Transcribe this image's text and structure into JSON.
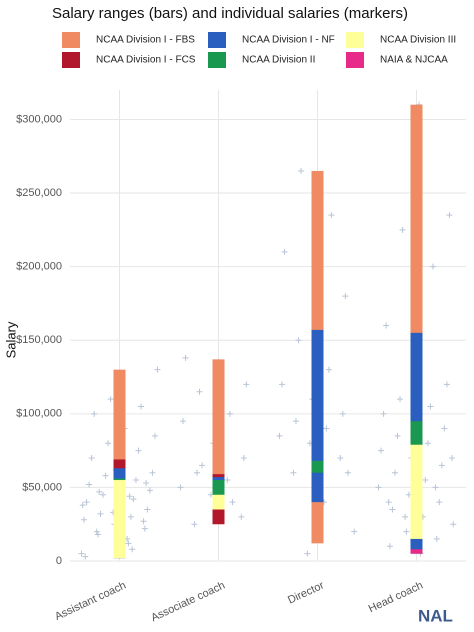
{
  "chart_data": {
    "type": "range-bar",
    "title": "Salary ranges (bars) and individual salaries (markers)",
    "y_label": "Salary",
    "categories": [
      "Assistant coach",
      "Associate coach",
      "Director",
      "Head coach"
    ],
    "ylim": [
      0,
      320000
    ],
    "yticks": [
      0,
      {
        "value": 50000,
        "label": "$50,000"
      },
      {
        "value": 100000,
        "label": "$100,000"
      },
      {
        "value": 150000,
        "label": "$150,000"
      },
      {
        "value": 200000,
        "label": "$200,000"
      },
      {
        "value": 250000,
        "label": "$250,000"
      },
      {
        "value": 300000,
        "label": "$300,000"
      }
    ],
    "grid": true,
    "series": [
      {
        "name": "NCAA Division I - FBS",
        "color": "#ef8a62",
        "low": [
          2000,
          25000,
          12000,
          5000
        ],
        "high": [
          130000,
          137000,
          265000,
          310000
        ]
      },
      {
        "name": "NCAA Division I - FCS",
        "color": "#b2182b",
        "low": [
          2000,
          25000,
          null,
          8000
        ],
        "high": [
          69000,
          59000,
          null,
          100000
        ]
      },
      {
        "name": "NCAA Division I - NF",
        "color": "#2b5fbf",
        "low": [
          2000,
          35000,
          40000,
          5000
        ],
        "high": [
          63000,
          57000,
          157000,
          155000
        ]
      },
      {
        "name": "NCAA Division II",
        "color": "#1a9850",
        "low": [
          2000,
          35000,
          60000,
          30000
        ],
        "high": [
          56000,
          55000,
          68000,
          95000
        ]
      },
      {
        "name": "NCAA Division III",
        "color": "#ffff99",
        "low": [
          2000,
          35000,
          null,
          15000
        ],
        "high": [
          55000,
          45000,
          null,
          79000
        ]
      },
      {
        "name": "NAIA & NJCAA",
        "color": "#e7298a",
        "low": [
          null,
          null,
          null,
          5000
        ],
        "high": [
          null,
          null,
          null,
          8000
        ]
      }
    ],
    "points": {
      "color": "#b8c4d6",
      "values": [
        [
          5000,
          12000,
          18000,
          22000,
          25000,
          28000,
          30000,
          32000,
          35000,
          37000,
          40000,
          42000,
          45000,
          48000,
          50000,
          52000,
          55000,
          58000,
          60000,
          65000,
          70000,
          75000,
          80000,
          85000,
          90000,
          100000,
          105000,
          110000,
          130000,
          15000,
          20000,
          27000,
          33000,
          38000,
          44000,
          47000,
          53000,
          62000,
          3000,
          8000
        ],
        [
          25000,
          30000,
          45000,
          50000,
          55000,
          60000,
          70000,
          80000,
          95000,
          100000,
          115000,
          120000,
          130000,
          138000,
          40000,
          65000
        ],
        [
          5000,
          20000,
          40000,
          60000,
          70000,
          80000,
          85000,
          90000,
          95000,
          100000,
          110000,
          120000,
          130000,
          150000,
          180000,
          200000,
          210000,
          235000,
          265000,
          60000,
          100000
        ],
        [
          5000,
          10000,
          15000,
          20000,
          25000,
          30000,
          35000,
          40000,
          45000,
          50000,
          55000,
          60000,
          65000,
          70000,
          75000,
          80000,
          85000,
          90000,
          95000,
          100000,
          105000,
          110000,
          120000,
          140000,
          160000,
          200000,
          225000,
          235000,
          310000,
          40000,
          50000,
          30000,
          70000
        ]
      ]
    },
    "logo": "NAL"
  }
}
